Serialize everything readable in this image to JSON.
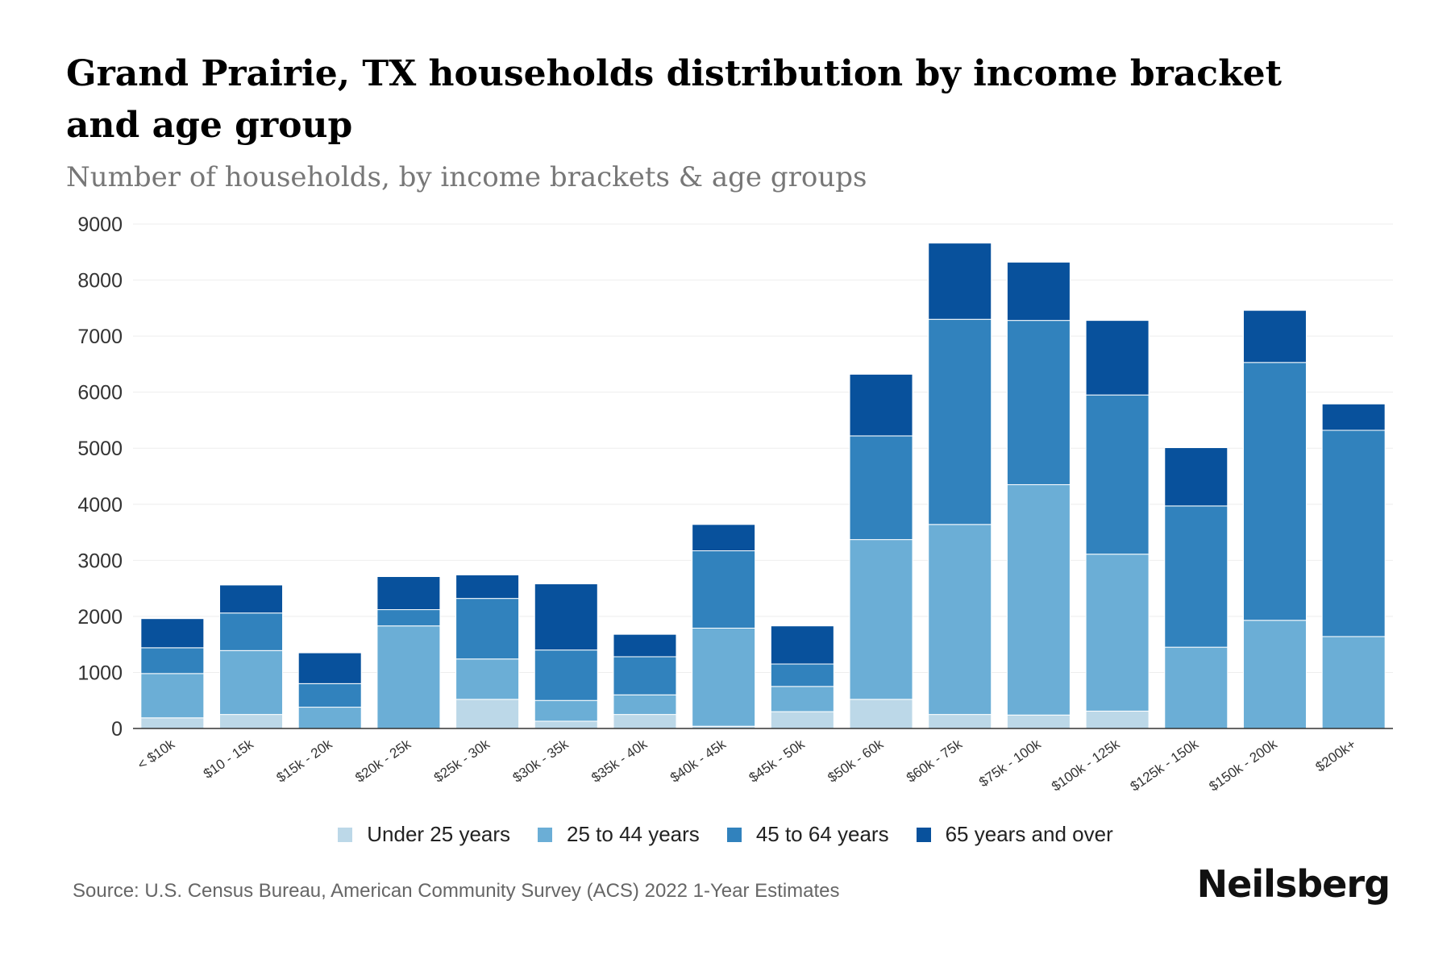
{
  "chart_data": {
    "type": "bar",
    "stacked": true,
    "title": "Grand Prairie, TX households distribution by income bracket and age group",
    "subtitle": "Number of households, by income brackets & age groups",
    "xlabel": "",
    "ylabel": "",
    "ylim": [
      0,
      9000
    ],
    "yticks": [
      0,
      1000,
      2000,
      3000,
      4000,
      5000,
      6000,
      7000,
      8000,
      9000
    ],
    "grid": true,
    "legend_position": "bottom-center",
    "categories": [
      "< $10k",
      "$10 - 15k",
      "$15k - 20k",
      "$20k - 25k",
      "$25k - 30k",
      "$30k - 35k",
      "$35k - 40k",
      "$40k - 45k",
      "$45k - 50k",
      "$50k - 60k",
      "$60k - 75k",
      "$75k - 100k",
      "$100k - 125k",
      "$125k - 150k",
      "$150k - 200k",
      "$200k+"
    ],
    "series": [
      {
        "name": "Under 25 years",
        "color": "#bcd8e8",
        "values": [
          190,
          250,
          0,
          0,
          520,
          130,
          250,
          40,
          300,
          520,
          250,
          240,
          310,
          0,
          0,
          0
        ]
      },
      {
        "name": "25 to 44 years",
        "color": "#6baed6",
        "values": [
          790,
          1140,
          380,
          1830,
          720,
          370,
          350,
          1750,
          450,
          2850,
          3390,
          4110,
          2800,
          1450,
          1930,
          1640
        ]
      },
      {
        "name": "45 to 64 years",
        "color": "#3182bd",
        "values": [
          460,
          670,
          420,
          290,
          1080,
          900,
          680,
          1380,
          400,
          1850,
          3660,
          2930,
          2840,
          2520,
          4600,
          3680
        ]
      },
      {
        "name": "65 years and over",
        "color": "#08519c",
        "values": [
          520,
          500,
          550,
          590,
          420,
          1180,
          400,
          470,
          680,
          1100,
          1360,
          1040,
          1330,
          1040,
          930,
          470
        ]
      }
    ]
  },
  "footer": {
    "source": "Source: U.S. Census Bureau, American Community Survey (ACS) 2022 1-Year Estimates",
    "brand": "Neilsberg"
  }
}
